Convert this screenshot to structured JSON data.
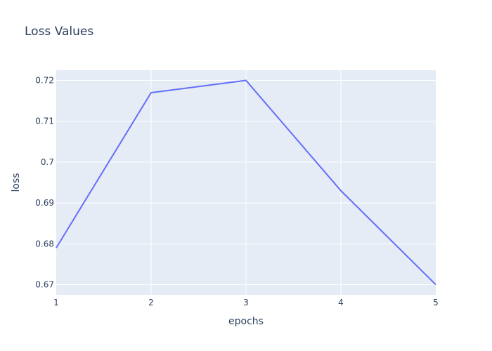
{
  "chart_data": {
    "type": "line",
    "title": "Loss Values",
    "xlabel": "epochs",
    "ylabel": "loss",
    "x": [
      1,
      2,
      3,
      4,
      5
    ],
    "series": [
      {
        "values": [
          0.679,
          0.717,
          0.72,
          0.693,
          0.67
        ]
      }
    ],
    "xlim": [
      1,
      5
    ],
    "ylim": [
      0.6675,
      0.7225
    ],
    "xticks": [
      1,
      2,
      3,
      4,
      5
    ],
    "xtick_labels": [
      "1",
      "2",
      "3",
      "4",
      "5"
    ],
    "yticks": [
      0.67,
      0.68,
      0.69,
      0.7,
      0.71,
      0.72
    ],
    "ytick_labels": [
      "0.67",
      "0.68",
      "0.69",
      "0.7",
      "0.71",
      "0.72"
    ],
    "grid": true,
    "colors": {
      "line": "#636efa",
      "plot_background": "#e5ecf6",
      "grid": "#ffffff",
      "text": "#2a3f5f"
    }
  }
}
